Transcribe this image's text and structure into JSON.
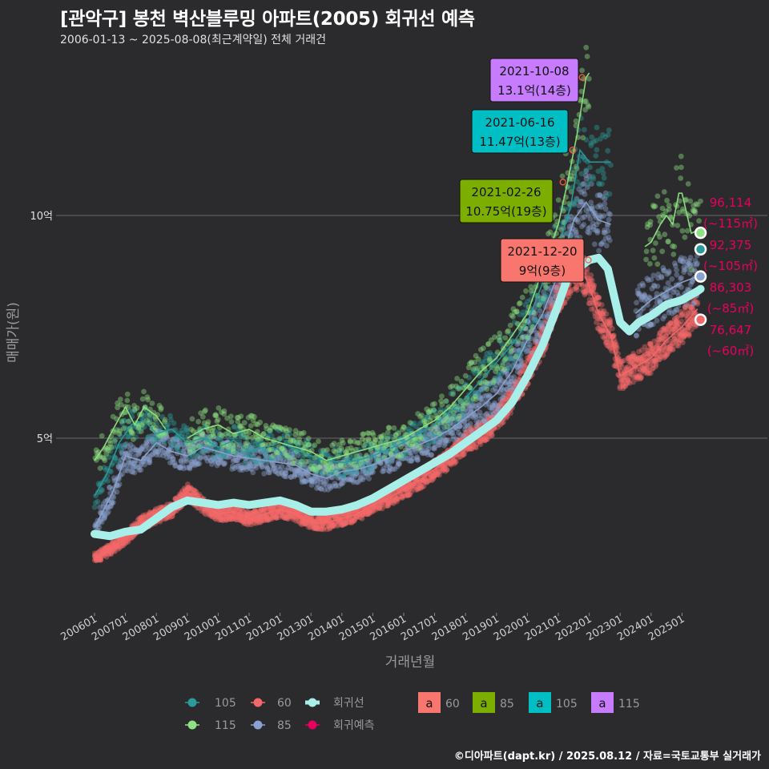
{
  "title": "[관악구] 봉천 벽산블루밍 아파트(2005) 회귀선 예측",
  "subtitle": "2006-01-13 ~ 2025-08-08(최근계약일) 전체 거래건",
  "caption": "©디아파트(dapt.kr) / 2025.08.12 / 자료=국토교통부 실거래가",
  "colors": {
    "s60": "#f4686a",
    "s85": "#8aa2cf",
    "s105": "#2a9a9a",
    "s115": "#8de381",
    "regression": "#a8efe9",
    "pred": "#e8005e",
    "lab60": "#f8766d",
    "lab85": "#7cae00",
    "lab105": "#00bfc4",
    "lab115": "#c77cff"
  },
  "chart_data": {
    "type": "scatter",
    "title": "[관악구] 봉천 벽산블루밍 아파트(2005) 회귀선 예측",
    "xlabel": "거래년월",
    "ylabel": "매매가(원)",
    "xlim": [
      2006.0,
      2026.0
    ],
    "ylim": [
      1.0,
      14.0
    ],
    "y_ticks": [
      {
        "value": 5,
        "label": "5억"
      },
      {
        "value": 10,
        "label": "10억"
      }
    ],
    "x_ticks": [
      {
        "value": 2006,
        "label": "200601"
      },
      {
        "value": 2007,
        "label": "200701"
      },
      {
        "value": 2008,
        "label": "200801"
      },
      {
        "value": 2009,
        "label": "200901"
      },
      {
        "value": 2010,
        "label": "201001"
      },
      {
        "value": 2011,
        "label": "201101"
      },
      {
        "value": 2012,
        "label": "201201"
      },
      {
        "value": 2013,
        "label": "201301"
      },
      {
        "value": 2014,
        "label": "201401"
      },
      {
        "value": 2015,
        "label": "201501"
      },
      {
        "value": 2016,
        "label": "201601"
      },
      {
        "value": 2017,
        "label": "201701"
      },
      {
        "value": 2018,
        "label": "201801"
      },
      {
        "value": 2019,
        "label": "201901"
      },
      {
        "value": 2020,
        "label": "202001"
      },
      {
        "value": 2021,
        "label": "202101"
      },
      {
        "value": 2022,
        "label": "202201"
      },
      {
        "value": 2023,
        "label": "202301"
      },
      {
        "value": 2024,
        "label": "202401"
      },
      {
        "value": 2025,
        "label": "202501"
      }
    ],
    "series": [
      {
        "name": "60",
        "color": "#f4686a",
        "x": [
          2006.0,
          2006.5,
          2007.0,
          2007.5,
          2008.0,
          2008.5,
          2009.0,
          2009.5,
          2010.0,
          2010.5,
          2011.0,
          2011.5,
          2012.0,
          2012.5,
          2013.0,
          2013.5,
          2014.0,
          2014.5,
          2015.0,
          2015.5,
          2016.0,
          2016.5,
          2017.0,
          2017.5,
          2018.0,
          2018.5,
          2019.0,
          2019.5,
          2020.0,
          2020.5,
          2021.0,
          2021.5,
          2021.9,
          2022.3,
          2022.7,
          2023.0,
          2023.5,
          2024.0,
          2024.5,
          2025.0,
          2025.5
        ],
        "y": [
          2.3,
          2.5,
          2.75,
          3.1,
          3.25,
          3.4,
          3.8,
          3.5,
          3.3,
          3.35,
          3.2,
          3.3,
          3.4,
          3.3,
          3.1,
          3.1,
          3.2,
          3.3,
          3.5,
          3.65,
          3.85,
          4.05,
          4.3,
          4.55,
          4.9,
          5.1,
          5.4,
          5.9,
          6.5,
          7.2,
          8.2,
          8.8,
          8.6,
          7.8,
          7.3,
          6.4,
          6.6,
          6.8,
          7.2,
          7.5,
          7.9
        ]
      },
      {
        "name": "85",
        "color": "#8aa2cf",
        "x": [
          2006.0,
          2006.3,
          2006.6,
          2007.0,
          2007.5,
          2008.0,
          2008.5,
          2009.0,
          2009.5,
          2010.0,
          2010.5,
          2011.0,
          2011.5,
          2012.0,
          2012.5,
          2013.0,
          2013.5,
          2014.0,
          2014.5,
          2015.0,
          2015.5,
          2016.0,
          2016.5,
          2017.0,
          2017.5,
          2018.0,
          2018.5,
          2019.0,
          2019.5,
          2020.0,
          2020.5,
          2021.0,
          2021.5,
          2021.9,
          2022.3,
          2022.7,
          2023.0,
          2023.5,
          2024.0,
          2024.5,
          2025.0,
          2025.5
        ],
        "y": [
          3.0,
          3.4,
          3.8,
          4.6,
          4.5,
          4.9,
          4.7,
          4.6,
          4.8,
          4.7,
          4.6,
          4.55,
          4.5,
          4.45,
          4.4,
          4.2,
          4.1,
          4.25,
          4.3,
          4.4,
          4.55,
          4.7,
          4.85,
          5.0,
          5.2,
          5.45,
          5.7,
          6.0,
          6.5,
          7.2,
          7.8,
          8.7,
          9.9,
          10.3,
          9.9,
          9.8,
          null,
          7.8,
          8.1,
          8.3,
          8.5,
          8.63
        ]
      },
      {
        "name": "105",
        "color": "#2a9a9a",
        "x": [
          2006.0,
          2006.4,
          2006.8,
          2007.2,
          2007.6,
          2008.0,
          2008.5,
          2009.0,
          2009.5,
          2010.0,
          2010.5,
          2011.0,
          2011.5,
          2012.0,
          2012.5,
          2013.0,
          2013.5,
          2014.0,
          2014.5,
          2015.0,
          2015.5,
          2016.0,
          2016.5,
          2017.0,
          2017.5,
          2018.0,
          2018.5,
          2019.0,
          2019.5,
          2020.0,
          2020.5,
          2021.0,
          2021.4,
          2021.7,
          2022.0,
          2022.4,
          2022.7
        ],
        "y": [
          3.7,
          4.2,
          4.9,
          5.3,
          5.4,
          5.1,
          5.2,
          4.9,
          5.0,
          4.8,
          4.95,
          4.7,
          4.8,
          4.9,
          4.75,
          4.6,
          4.5,
          4.45,
          4.5,
          4.6,
          4.75,
          4.9,
          5.1,
          5.3,
          5.6,
          5.9,
          6.3,
          6.7,
          7.1,
          7.6,
          8.5,
          9.3,
          10.2,
          11.47,
          11.2,
          11.2,
          11.2
        ]
      },
      {
        "name": "115",
        "color": "#8de381",
        "x": [
          2006.0,
          2006.3,
          2006.6,
          2007.0,
          2007.3,
          2007.6,
          2008.0,
          2008.3,
          2008.6,
          2009.0,
          2009.5,
          2010.0,
          2010.5,
          2011.0,
          2011.5,
          2012.0,
          2012.5,
          2013.0,
          2013.5,
          2014.0,
          2014.5,
          2015.0,
          2015.5,
          2016.0,
          2016.5,
          2017.0,
          2017.5,
          2018.0,
          2018.5,
          2019.0,
          2019.5,
          2020.0,
          2020.5,
          2021.0,
          2021.3,
          2021.6,
          2021.9,
          2022.0
        ],
        "y": [
          4.5,
          4.8,
          5.2,
          5.7,
          5.3,
          5.7,
          5.5,
          5.2,
          null,
          5.0,
          5.2,
          5.3,
          5.1,
          5.2,
          5.0,
          4.9,
          4.8,
          4.7,
          4.5,
          4.6,
          4.7,
          4.8,
          4.9,
          5.0,
          5.2,
          5.4,
          5.7,
          6.1,
          6.5,
          6.8,
          7.3,
          7.8,
          8.8,
          9.8,
          10.75,
          11.8,
          13.1,
          13.2
        ]
      },
      {
        "name": "115-recent",
        "color": "#8de381",
        "x": [
          2023.8,
          2024.0,
          2024.3,
          2024.5,
          2024.7,
          2024.9,
          2025.0,
          2025.3,
          2025.6
        ],
        "y": [
          9.3,
          9.4,
          9.8,
          10.0,
          9.8,
          10.5,
          10.5,
          9.6,
          9.7
        ]
      }
    ],
    "regression": {
      "name": "회귀선",
      "x": [
        2006.0,
        2006.5,
        2007.0,
        2007.5,
        2008.0,
        2008.5,
        2009.0,
        2009.5,
        2010.0,
        2010.5,
        2011.0,
        2011.5,
        2012.0,
        2012.5,
        2013.0,
        2013.5,
        2014.0,
        2014.5,
        2015.0,
        2015.5,
        2016.0,
        2016.5,
        2017.0,
        2017.5,
        2018.0,
        2018.5,
        2019.0,
        2019.5,
        2020.0,
        2020.5,
        2021.0,
        2021.3,
        2021.6,
        2022.0,
        2022.3,
        2022.6,
        2023.0,
        2023.3,
        2023.6,
        2024.0,
        2024.5,
        2025.0,
        2025.5,
        2025.6
      ],
      "y": [
        2.85,
        2.8,
        2.9,
        2.95,
        3.2,
        3.45,
        3.6,
        3.55,
        3.5,
        3.55,
        3.5,
        3.55,
        3.6,
        3.5,
        3.35,
        3.35,
        3.4,
        3.5,
        3.65,
        3.85,
        4.05,
        4.25,
        4.45,
        4.65,
        4.9,
        5.15,
        5.4,
        5.8,
        6.4,
        7.1,
        8.0,
        8.6,
        8.8,
        9.0,
        9.05,
        8.8,
        7.6,
        7.4,
        7.6,
        7.75,
        8.0,
        8.1,
        8.3,
        8.35
      ]
    },
    "predictions": [
      {
        "label": "96,114",
        "area": "(~115㎡)",
        "x": 2025.6,
        "y": 9.61,
        "color": "#8de381"
      },
      {
        "label": "92,375",
        "area": "(~105㎡)",
        "x": 2025.6,
        "y": 9.24,
        "color": "#2a9a9a"
      },
      {
        "label": "86,303",
        "area": "(~85㎡)",
        "x": 2025.6,
        "y": 8.63,
        "color": "#8aa2cf"
      },
      {
        "label": "76,647",
        "area": "(~60㎡)",
        "x": 2025.6,
        "y": 7.66,
        "color": "#f4686a"
      }
    ],
    "max_labels": [
      {
        "date": "2021-10-08",
        "price": "13.1억(14층)",
        "x": 2021.77,
        "y": 13.1,
        "bg": "#c77cff"
      },
      {
        "date": "2021-06-16",
        "price": "11.47억(13층)",
        "x": 2021.46,
        "y": 11.47,
        "bg": "#00bfc4"
      },
      {
        "date": "2021-02-26",
        "price": "10.75억(19층)",
        "x": 2021.15,
        "y": 10.75,
        "bg": "#7cae00"
      },
      {
        "date": "2021-12-20",
        "price": "9억(9층)",
        "x": 2021.97,
        "y": 9.0,
        "bg": "#f8766d"
      }
    ],
    "legend": {
      "points": [
        {
          "label": "105",
          "key": "s105"
        },
        {
          "label": "60",
          "key": "s60"
        },
        {
          "label": "회귀선",
          "key": "regression"
        },
        {
          "label": "115",
          "key": "s115"
        },
        {
          "label": "85",
          "key": "s85"
        },
        {
          "label": "회귀예측",
          "key": "pred"
        }
      ],
      "boxes": [
        {
          "label": "60",
          "key": "lab60"
        },
        {
          "label": "85",
          "key": "lab85"
        },
        {
          "label": "105",
          "key": "lab105"
        },
        {
          "label": "115",
          "key": "lab115"
        }
      ],
      "glyph": "a"
    }
  }
}
